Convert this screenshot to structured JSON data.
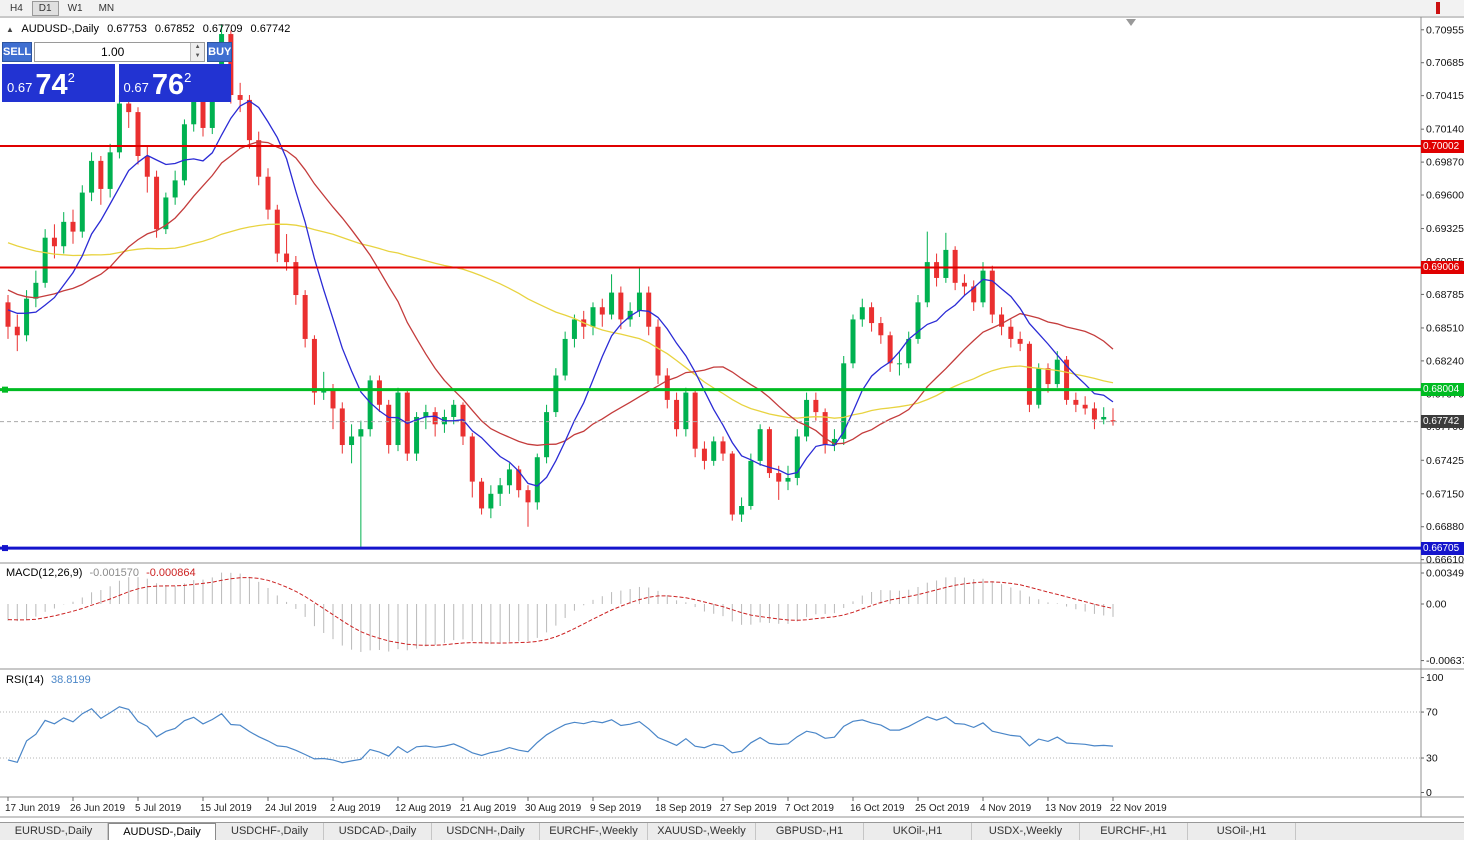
{
  "toolbar": {
    "timeframes": [
      "H4",
      "D1",
      "W1",
      "MN"
    ],
    "active": "D1"
  },
  "symbol_line": {
    "collapse": "▲",
    "symbol": "AUDUSD-,Daily",
    "open": "0.67753",
    "high": "0.67852",
    "low": "0.67709",
    "close": "0.67742"
  },
  "trade_panel": {
    "sell": "SELL",
    "buy": "BUY",
    "volume": "1.00",
    "bid": {
      "small": "0.67",
      "big": "74",
      "sup": "2"
    },
    "ask": {
      "small": "0.67",
      "big": "76",
      "sup": "2"
    }
  },
  "chart_data": {
    "type": "candlestick",
    "title": "AUDUSD-,Daily",
    "timeframe": "D1",
    "price_axis_labels": [
      "0.70955",
      "0.70685",
      "0.70415",
      "0.70140",
      "0.69870",
      "0.69600",
      "0.69325",
      "0.69055",
      "0.68785",
      "0.68510",
      "0.68240",
      "0.67970",
      "0.67700",
      "0.67425",
      "0.67150",
      "0.66880",
      "0.66610"
    ],
    "date_axis_labels": [
      "17 Jun 2019",
      "26 Jun 2019",
      "5 Jul 2019",
      "15 Jul 2019",
      "24 Jul 2019",
      "2 Aug 2019",
      "12 Aug 2019",
      "21 Aug 2019",
      "30 Aug 2019",
      "9 Sep 2019",
      "18 Sep 2019",
      "27 Sep 2019",
      "7 Oct 2019",
      "16 Oct 2019",
      "25 Oct 2019",
      "4 Nov 2019",
      "13 Nov 2019",
      "22 Nov 2019"
    ],
    "candles_per_label": 7,
    "ohlc": [
      [
        0.6872,
        0.6878,
        0.6842,
        0.6852
      ],
      [
        0.6852,
        0.6862,
        0.6832,
        0.6845
      ],
      [
        0.6845,
        0.6882,
        0.684,
        0.6875
      ],
      [
        0.6875,
        0.6898,
        0.6868,
        0.6888
      ],
      [
        0.6888,
        0.6932,
        0.6884,
        0.6925
      ],
      [
        0.6925,
        0.6936,
        0.6908,
        0.6918
      ],
      [
        0.6918,
        0.6946,
        0.6912,
        0.6938
      ],
      [
        0.6938,
        0.6948,
        0.692,
        0.693
      ],
      [
        0.693,
        0.6968,
        0.6925,
        0.6962
      ],
      [
        0.6962,
        0.6995,
        0.6955,
        0.6988
      ],
      [
        0.6988,
        0.6992,
        0.6952,
        0.6965
      ],
      [
        0.6965,
        0.7002,
        0.6958,
        0.6995
      ],
      [
        0.6995,
        0.7042,
        0.699,
        0.7035
      ],
      [
        0.7035,
        0.7045,
        0.7015,
        0.7028
      ],
      [
        0.7028,
        0.7032,
        0.6985,
        0.6992
      ],
      [
        0.6992,
        0.7,
        0.6962,
        0.6975
      ],
      [
        0.6975,
        0.698,
        0.6925,
        0.6932
      ],
      [
        0.6932,
        0.6962,
        0.6928,
        0.6958
      ],
      [
        0.6958,
        0.698,
        0.6952,
        0.6972
      ],
      [
        0.6972,
        0.7022,
        0.6968,
        0.7018
      ],
      [
        0.7018,
        0.7048,
        0.7012,
        0.7042
      ],
      [
        0.7042,
        0.7046,
        0.7008,
        0.7015
      ],
      [
        0.7015,
        0.7052,
        0.701,
        0.7045
      ],
      [
        0.7045,
        0.71,
        0.704,
        0.7092
      ],
      [
        0.7092,
        0.7095,
        0.7035,
        0.7042
      ],
      [
        0.7042,
        0.7052,
        0.7028,
        0.7038
      ],
      [
        0.7038,
        0.7042,
        0.6998,
        0.7005
      ],
      [
        0.7005,
        0.7012,
        0.6968,
        0.6975
      ],
      [
        0.6975,
        0.6982,
        0.694,
        0.6948
      ],
      [
        0.6948,
        0.6952,
        0.6905,
        0.6912
      ],
      [
        0.6912,
        0.6928,
        0.6898,
        0.6905
      ],
      [
        0.6905,
        0.691,
        0.687,
        0.6878
      ],
      [
        0.6878,
        0.6882,
        0.6835,
        0.6842
      ],
      [
        0.6842,
        0.6845,
        0.6788,
        0.6798
      ],
      [
        0.6798,
        0.6815,
        0.6792,
        0.68
      ],
      [
        0.68,
        0.6805,
        0.6768,
        0.6785
      ],
      [
        0.6785,
        0.679,
        0.6748,
        0.6755
      ],
      [
        0.6755,
        0.6772,
        0.674,
        0.6762
      ],
      [
        0.6762,
        0.6775,
        0.6671,
        0.6768
      ],
      [
        0.6768,
        0.6812,
        0.6762,
        0.6808
      ],
      [
        0.6808,
        0.6812,
        0.6782,
        0.6788
      ],
      [
        0.6788,
        0.6792,
        0.6748,
        0.6755
      ],
      [
        0.6755,
        0.6802,
        0.675,
        0.6798
      ],
      [
        0.6798,
        0.68,
        0.6742,
        0.6748
      ],
      [
        0.6748,
        0.6782,
        0.6742,
        0.6778
      ],
      [
        0.6778,
        0.6788,
        0.6768,
        0.6782
      ],
      [
        0.6782,
        0.6786,
        0.6762,
        0.6772
      ],
      [
        0.6772,
        0.6784,
        0.6765,
        0.6778
      ],
      [
        0.6778,
        0.6792,
        0.6772,
        0.6788
      ],
      [
        0.6788,
        0.679,
        0.6755,
        0.6762
      ],
      [
        0.6762,
        0.6765,
        0.6712,
        0.6725
      ],
      [
        0.6725,
        0.6728,
        0.6698,
        0.6703
      ],
      [
        0.6703,
        0.6722,
        0.6695,
        0.6715
      ],
      [
        0.6715,
        0.6728,
        0.6705,
        0.6722
      ],
      [
        0.6722,
        0.674,
        0.6715,
        0.6735
      ],
      [
        0.6735,
        0.6738,
        0.6712,
        0.6718
      ],
      [
        0.6718,
        0.6722,
        0.6688,
        0.6708
      ],
      [
        0.6708,
        0.6748,
        0.6702,
        0.6745
      ],
      [
        0.6745,
        0.6788,
        0.674,
        0.6782
      ],
      [
        0.6782,
        0.6818,
        0.6778,
        0.6812
      ],
      [
        0.6812,
        0.6848,
        0.6808,
        0.6842
      ],
      [
        0.6842,
        0.6862,
        0.6835,
        0.6858
      ],
      [
        0.6858,
        0.6865,
        0.6842,
        0.6852
      ],
      [
        0.6852,
        0.6872,
        0.6845,
        0.6868
      ],
      [
        0.6868,
        0.6875,
        0.6852,
        0.6862
      ],
      [
        0.6862,
        0.6895,
        0.6858,
        0.688
      ],
      [
        0.688,
        0.6885,
        0.685,
        0.6858
      ],
      [
        0.6858,
        0.6872,
        0.6852,
        0.6865
      ],
      [
        0.6865,
        0.69,
        0.686,
        0.688
      ],
      [
        0.688,
        0.6885,
        0.6845,
        0.6852
      ],
      [
        0.6852,
        0.6858,
        0.6805,
        0.6812
      ],
      [
        0.6812,
        0.6818,
        0.6785,
        0.6792
      ],
      [
        0.6792,
        0.6798,
        0.6762,
        0.6768
      ],
      [
        0.6768,
        0.6802,
        0.6762,
        0.6798
      ],
      [
        0.6798,
        0.68,
        0.6745,
        0.6752
      ],
      [
        0.6752,
        0.6758,
        0.6735,
        0.6742
      ],
      [
        0.6742,
        0.6762,
        0.6738,
        0.6758
      ],
      [
        0.6758,
        0.6762,
        0.6742,
        0.6748
      ],
      [
        0.6748,
        0.675,
        0.6693,
        0.6698
      ],
      [
        0.6698,
        0.6712,
        0.6692,
        0.6705
      ],
      [
        0.6705,
        0.6748,
        0.6702,
        0.6742
      ],
      [
        0.6742,
        0.6772,
        0.6738,
        0.6768
      ],
      [
        0.6768,
        0.677,
        0.6728,
        0.6732
      ],
      [
        0.6732,
        0.6738,
        0.671,
        0.6725
      ],
      [
        0.6725,
        0.6738,
        0.6718,
        0.6728
      ],
      [
        0.6728,
        0.6768,
        0.6722,
        0.6762
      ],
      [
        0.6762,
        0.6798,
        0.6758,
        0.6792
      ],
      [
        0.6792,
        0.6798,
        0.6775,
        0.6782
      ],
      [
        0.6782,
        0.6785,
        0.6748,
        0.6755
      ],
      [
        0.6755,
        0.6768,
        0.675,
        0.676
      ],
      [
        0.676,
        0.6828,
        0.6755,
        0.6822
      ],
      [
        0.6822,
        0.6862,
        0.6818,
        0.6858
      ],
      [
        0.6858,
        0.6875,
        0.6852,
        0.6868
      ],
      [
        0.6868,
        0.6872,
        0.6848,
        0.6855
      ],
      [
        0.6855,
        0.686,
        0.6838,
        0.6845
      ],
      [
        0.6845,
        0.6848,
        0.6815,
        0.6822
      ],
      [
        0.6822,
        0.6832,
        0.6812,
        0.6822
      ],
      [
        0.6822,
        0.6848,
        0.6818,
        0.6842
      ],
      [
        0.6842,
        0.6878,
        0.6838,
        0.6872
      ],
      [
        0.6872,
        0.693,
        0.6868,
        0.6905
      ],
      [
        0.6905,
        0.6912,
        0.6885,
        0.6892
      ],
      [
        0.6892,
        0.6929,
        0.6888,
        0.6915
      ],
      [
        0.6915,
        0.6918,
        0.6882,
        0.6888
      ],
      [
        0.6888,
        0.6895,
        0.6878,
        0.6885
      ],
      [
        0.6885,
        0.689,
        0.6865,
        0.6872
      ],
      [
        0.6872,
        0.6905,
        0.6868,
        0.6898
      ],
      [
        0.6898,
        0.6902,
        0.6855,
        0.6862
      ],
      [
        0.6862,
        0.6868,
        0.6845,
        0.6852
      ],
      [
        0.6852,
        0.6858,
        0.6835,
        0.6842
      ],
      [
        0.6842,
        0.6848,
        0.6832,
        0.6838
      ],
      [
        0.6838,
        0.684,
        0.6782,
        0.6788
      ],
      [
        0.6788,
        0.6822,
        0.6785,
        0.6818
      ],
      [
        0.6818,
        0.6822,
        0.6798,
        0.6805
      ],
      [
        0.6805,
        0.6832,
        0.6802,
        0.6825
      ],
      [
        0.6825,
        0.6828,
        0.6788,
        0.6792
      ],
      [
        0.6792,
        0.6798,
        0.6782,
        0.6788
      ],
      [
        0.6788,
        0.6795,
        0.678,
        0.6785
      ],
      [
        0.6785,
        0.679,
        0.6768,
        0.6776
      ],
      [
        0.6776,
        0.6786,
        0.6772,
        0.6778
      ],
      [
        0.67753,
        0.67852,
        0.67709,
        0.67742
      ]
    ],
    "colors": {
      "up": "#00b150",
      "down": "#ea3030",
      "ma_fast": "#2b2bd5",
      "ma_mid": "#c43c3c",
      "ma_slow": "#e8d340",
      "macd_hist": "#b9b9b9",
      "macd_signal": "#cc2222",
      "rsi": "#4a86c8"
    },
    "ma_periods": {
      "fast": 8,
      "mid": 20,
      "slow": 50
    },
    "warmup": {
      "start": 0.7,
      "end": 0.686,
      "count": 55
    },
    "hlines": [
      {
        "value": 0.70002,
        "label": "0.70002",
        "color": "#e00000",
        "width": 2,
        "handle": false
      },
      {
        "value": 0.69006,
        "label": "0.69006",
        "color": "#e00000",
        "width": 2,
        "handle": false
      },
      {
        "value": 0.68004,
        "label": "0.68004",
        "color": "#00bb22",
        "width": 3,
        "handle": true
      },
      {
        "value": 0.66705,
        "label": "0.66705",
        "color": "#1414cc",
        "width": 3,
        "handle": true
      }
    ],
    "current_price": {
      "value": 0.67742,
      "label": "0.67742",
      "color": "#3c3c3c"
    },
    "macd": {
      "label": "MACD(12,26,9)",
      "value": "-0.001570",
      "signal_value": "-0.000864",
      "fast": 12,
      "slow": 26,
      "signal": 9,
      "axis_labels": [
        {
          "text": "0.00349",
          "v": 0.00349
        },
        {
          "text": "0.00",
          "v": 0
        },
        {
          "text": "-0.00637",
          "v": -0.00637
        }
      ]
    },
    "rsi": {
      "label": "RSI(14)",
      "value": "38.8199",
      "period": 14,
      "axis_labels": [
        {
          "text": "100",
          "v": 100
        },
        {
          "text": "70",
          "v": 70
        },
        {
          "text": "30",
          "v": 30
        },
        {
          "text": "0",
          "v": 0
        }
      ],
      "levels": [
        70,
        30
      ]
    }
  },
  "tabs": {
    "items": [
      "EURUSD-,Daily",
      "AUDUSD-,Daily",
      "USDCHF-,Daily",
      "USDCAD-,Daily",
      "USDCNH-,Daily",
      "EURCHF-,Weekly",
      "XAUUSD-,Weekly",
      "GBPUSD-,H1",
      "UKOil-,H1",
      "USDX-,Weekly",
      "EURCHF-,H1",
      "USOil-,H1"
    ],
    "active": "AUDUSD-,Daily"
  }
}
